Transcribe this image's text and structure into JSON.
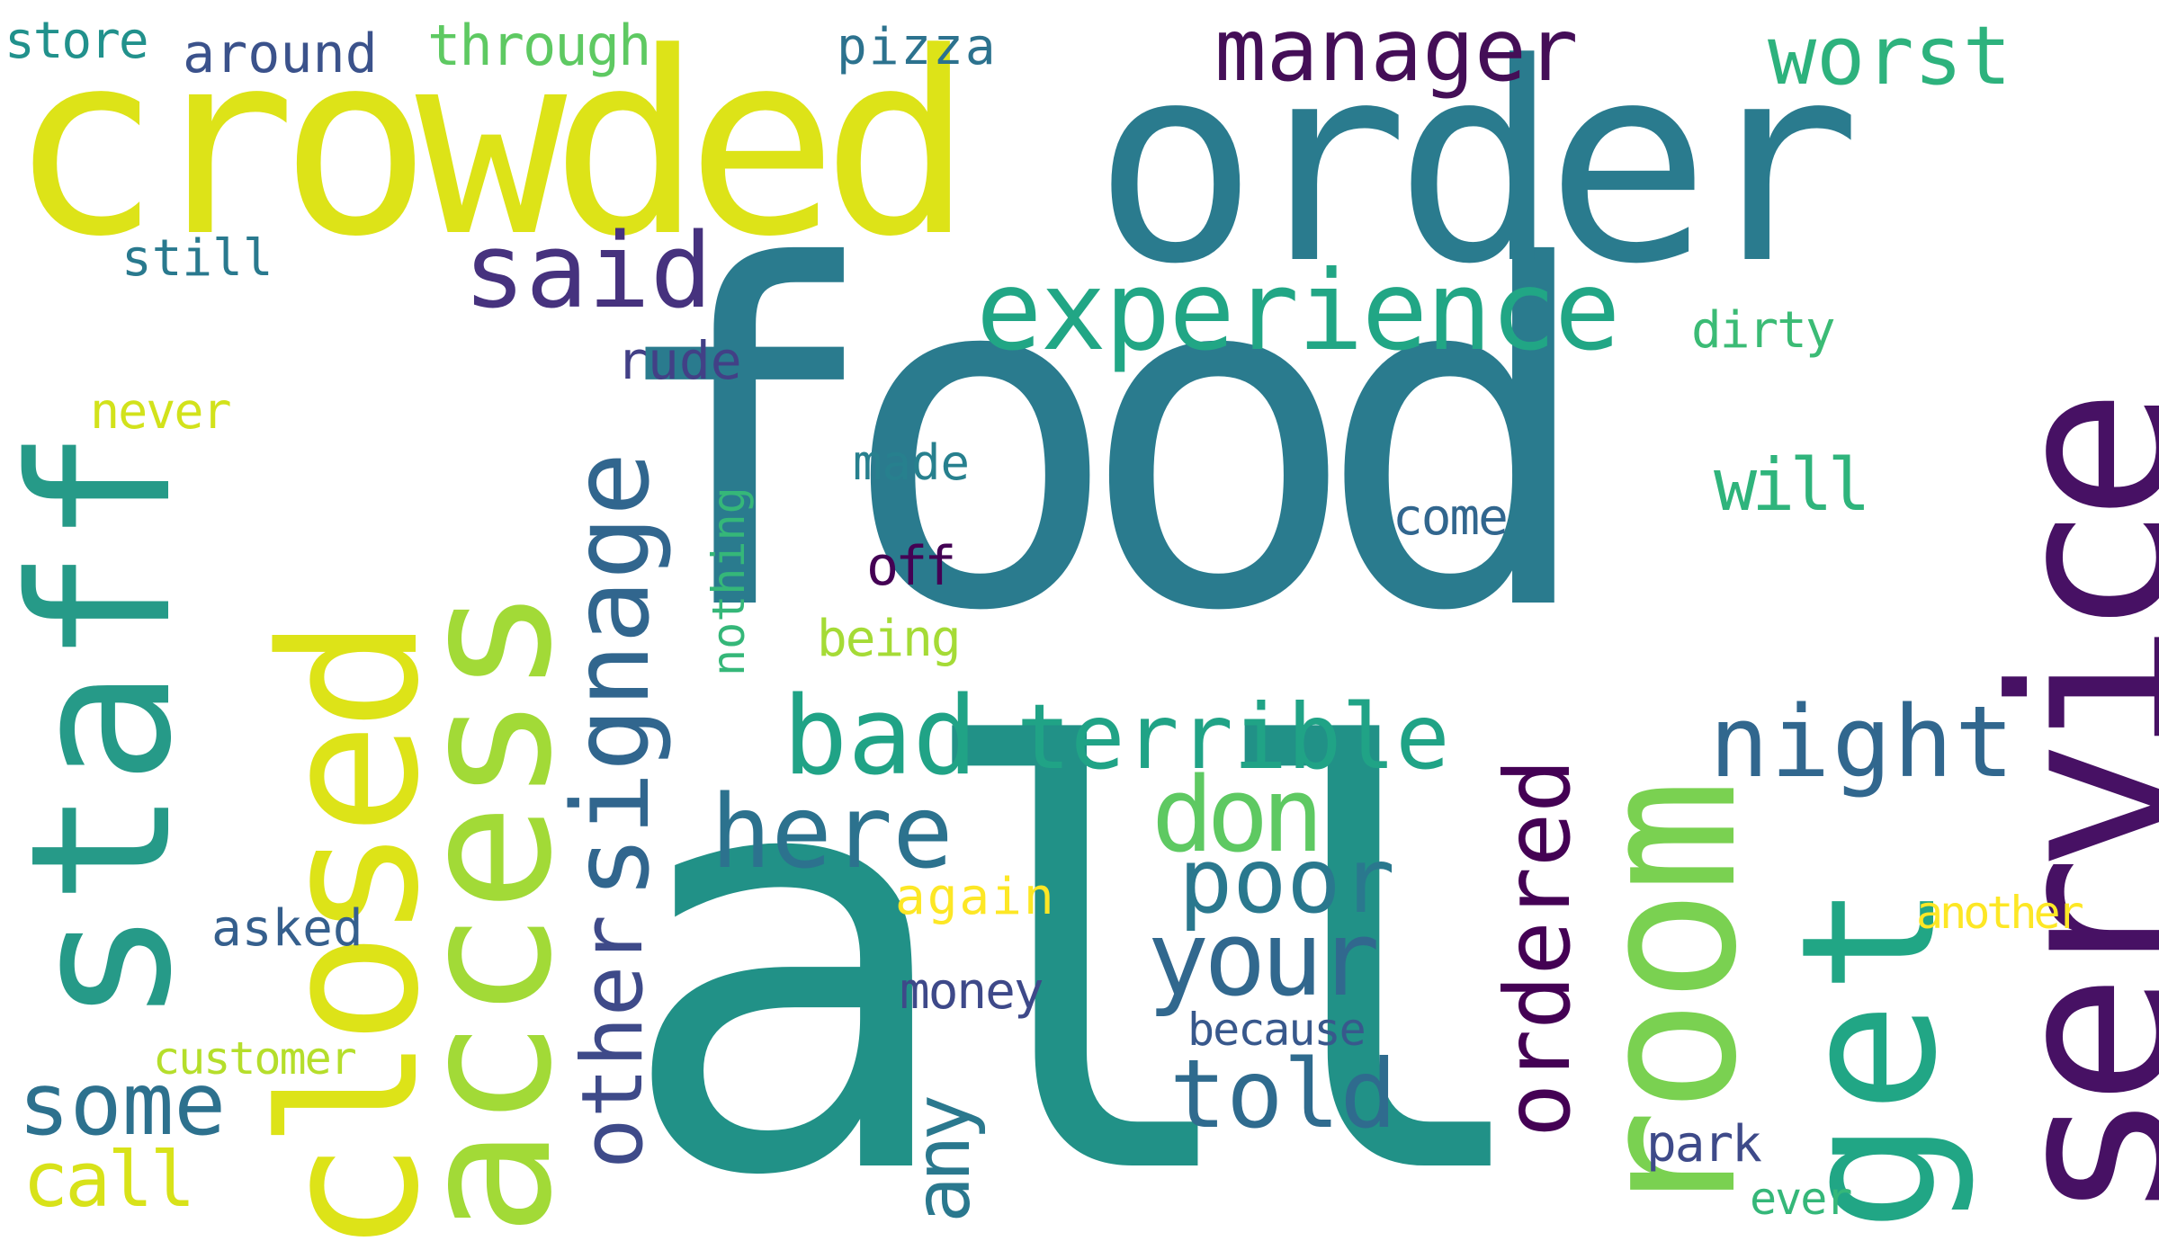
{
  "words": [
    {
      "text": "food",
      "color": "#2a7b8e",
      "rotated": false
    },
    {
      "text": "all",
      "color": "#219187",
      "rotated": false
    },
    {
      "text": "order",
      "color": "#2a7b8e",
      "rotated": false
    },
    {
      "text": "crowded",
      "color": "#dde318",
      "rotated": false
    },
    {
      "text": "service",
      "color": "#471164",
      "rotated": true
    },
    {
      "text": "closed",
      "color": "#dde318",
      "rotated": true
    },
    {
      "text": "access",
      "color": "#a2da37",
      "rotated": true
    },
    {
      "text": "staff",
      "color": "#269a88",
      "rotated": true
    },
    {
      "text": "get",
      "color": "#21a685",
      "rotated": true
    },
    {
      "text": "room",
      "color": "#7ad151",
      "rotated": true
    },
    {
      "text": "experience",
      "color": "#21a685",
      "rotated": false
    },
    {
      "text": "manager",
      "color": "#440e57",
      "rotated": false
    },
    {
      "text": "worst",
      "color": "#2db27d",
      "rotated": false
    },
    {
      "text": "said",
      "color": "#46327e",
      "rotated": false
    },
    {
      "text": "signage",
      "color": "#31668e",
      "rotated": true
    },
    {
      "text": "bad",
      "color": "#20a386",
      "rotated": false
    },
    {
      "text": "terrible",
      "color": "#20a386",
      "rotated": false
    },
    {
      "text": "night",
      "color": "#31678e",
      "rotated": false
    },
    {
      "text": "here",
      "color": "#2c728e",
      "rotated": false
    },
    {
      "text": "don",
      "color": "#5ec962",
      "rotated": false
    },
    {
      "text": "poor",
      "color": "#2a788e",
      "rotated": false
    },
    {
      "text": "your",
      "color": "#31688e",
      "rotated": false
    },
    {
      "text": "ordered",
      "color": "#440154",
      "rotated": true
    },
    {
      "text": "other",
      "color": "#3e4a89",
      "rotated": true
    },
    {
      "text": "told",
      "color": "#2f6b8e",
      "rotated": false
    },
    {
      "text": "some",
      "color": "#2d718e",
      "rotated": false
    },
    {
      "text": "call",
      "color": "#d8e219",
      "rotated": false
    },
    {
      "text": "any",
      "color": "#2a788e",
      "rotated": true
    },
    {
      "text": "will",
      "color": "#2fb47c",
      "rotated": false
    },
    {
      "text": "store",
      "color": "#21918c",
      "rotated": false
    },
    {
      "text": "around",
      "color": "#3b528b",
      "rotated": false
    },
    {
      "text": "through",
      "color": "#5ec962",
      "rotated": false
    },
    {
      "text": "pizza",
      "color": "#2c728e",
      "rotated": false
    },
    {
      "text": "still",
      "color": "#29798e",
      "rotated": false
    },
    {
      "text": "dirty",
      "color": "#3bbb75",
      "rotated": false
    },
    {
      "text": "rude",
      "color": "#424086",
      "rotated": false
    },
    {
      "text": "never",
      "color": "#d2e21b",
      "rotated": false
    },
    {
      "text": "made",
      "color": "#27808e",
      "rotated": false
    },
    {
      "text": "nothing",
      "color": "#35b779",
      "rotated": true
    },
    {
      "text": "come",
      "color": "#31668e",
      "rotated": false
    },
    {
      "text": "off",
      "color": "#440154",
      "rotated": false
    },
    {
      "text": "being",
      "color": "#a5db36",
      "rotated": false
    },
    {
      "text": "again",
      "color": "#fde725",
      "rotated": false
    },
    {
      "text": "asked",
      "color": "#355f8d",
      "rotated": false
    },
    {
      "text": "money",
      "color": "#3e4989",
      "rotated": false
    },
    {
      "text": "because",
      "color": "#38588c",
      "rotated": false
    },
    {
      "text": "another",
      "color": "#fde725",
      "rotated": false
    },
    {
      "text": "customer",
      "color": "#b5de2b",
      "rotated": false
    },
    {
      "text": "park",
      "color": "#3e4a89",
      "rotated": false
    },
    {
      "text": "ever",
      "color": "#35b779",
      "rotated": false
    }
  ]
}
